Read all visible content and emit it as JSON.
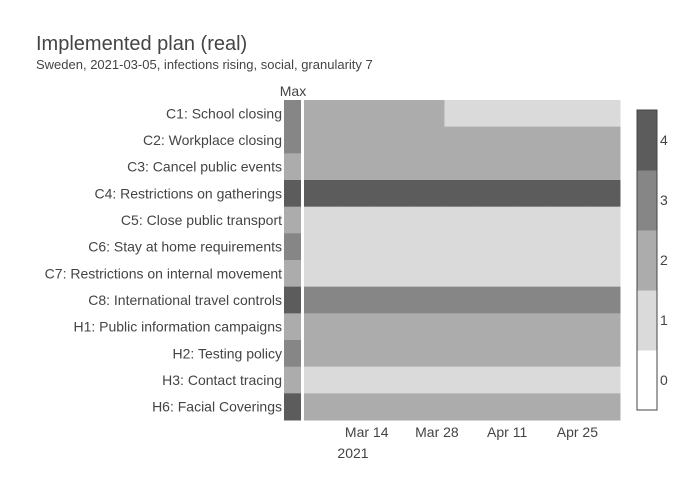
{
  "chart_data": {
    "type": "heatmap",
    "title": "Implemented plan (real)",
    "subtitle": "Sweden, 2021-03-05, infections rising, social, granularity 7",
    "max_column_label": "Max",
    "rows": [
      "C1: School closing",
      "C2: Workplace closing",
      "C3: Cancel public events",
      "C4: Restrictions on gatherings",
      "C5: Close public transport",
      "C6: Stay at home requirements",
      "C7: Restrictions on internal movement",
      "C8: International travel controls",
      "H1: Public information campaigns",
      "H2: Testing policy",
      "H3: Contact tracing",
      "H6: Facial Coverings"
    ],
    "max_values": [
      3,
      3,
      2,
      4,
      2,
      3,
      2,
      4,
      2,
      3,
      2,
      4
    ],
    "x_dates": [
      "2021-03-05",
      "2021-03-12",
      "2021-03-19",
      "2021-03-26",
      "2021-04-02",
      "2021-04-09",
      "2021-04-16",
      "2021-04-23",
      "2021-04-30"
    ],
    "values": [
      [
        2,
        2,
        2,
        2,
        1,
        1,
        1,
        1,
        1
      ],
      [
        2,
        2,
        2,
        2,
        2,
        2,
        2,
        2,
        2
      ],
      [
        2,
        2,
        2,
        2,
        2,
        2,
        2,
        2,
        2
      ],
      [
        4,
        4,
        4,
        4,
        4,
        4,
        4,
        4,
        4
      ],
      [
        1,
        1,
        1,
        1,
        1,
        1,
        1,
        1,
        1
      ],
      [
        1,
        1,
        1,
        1,
        1,
        1,
        1,
        1,
        1
      ],
      [
        1,
        1,
        1,
        1,
        1,
        1,
        1,
        1,
        1
      ],
      [
        3,
        3,
        3,
        3,
        3,
        3,
        3,
        3,
        3
      ],
      [
        2,
        2,
        2,
        2,
        2,
        2,
        2,
        2,
        2
      ],
      [
        2,
        2,
        2,
        2,
        2,
        2,
        2,
        2,
        2
      ],
      [
        1,
        1,
        1,
        1,
        1,
        1,
        1,
        1,
        1
      ],
      [
        2,
        2,
        2,
        2,
        2,
        2,
        2,
        2,
        2
      ]
    ],
    "x_ticks": [
      {
        "date": "2021-03-14",
        "label": "Mar 14"
      },
      {
        "date": "2021-03-28",
        "label": "Mar 28"
      },
      {
        "date": "2021-04-11",
        "label": "Apr 11"
      },
      {
        "date": "2021-04-25",
        "label": "Apr 25"
      }
    ],
    "x_year_label": "2021",
    "colorbar": {
      "ticks": [
        "0",
        "1",
        "2",
        "3",
        "4"
      ],
      "range": [
        0,
        4
      ],
      "colors": [
        "#ffffff",
        "#dadada",
        "#acacac",
        "#868686",
        "#5c5c5c"
      ]
    },
    "grid": false
  }
}
